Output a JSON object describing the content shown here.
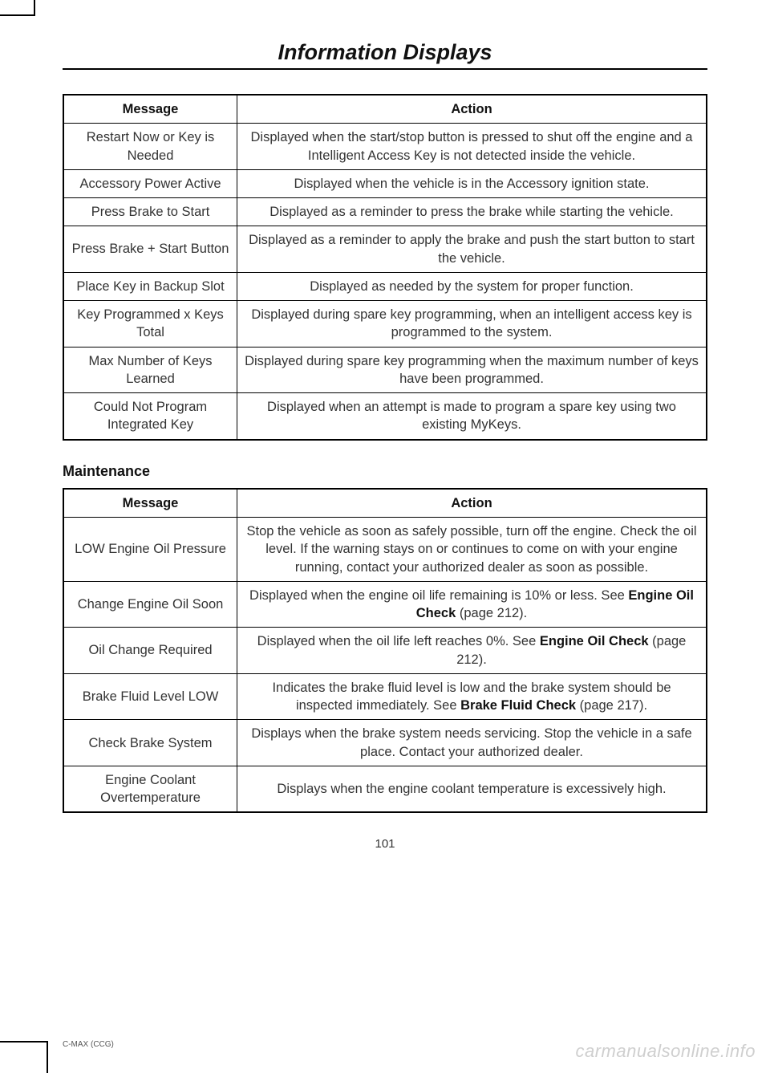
{
  "page_title": "Information Displays",
  "page_number": "101",
  "footer_text": "C-MAX (CCG)",
  "watermark": "carmanualsonline.info",
  "table1": {
    "headers": {
      "message": "Message",
      "action": "Action"
    },
    "rows": [
      {
        "message": "Restart Now or Key is Needed",
        "action": "Displayed when the start/stop button is pressed to shut off the engine and a Intelligent Access Key is not detected inside the vehicle."
      },
      {
        "message": "Accessory Power Active",
        "action": "Displayed when the vehicle is in the Accessory ignition state."
      },
      {
        "message": "Press Brake to Start",
        "action": "Displayed as a reminder to press the brake while starting the vehicle."
      },
      {
        "message": "Press Brake + Start Button",
        "action": "Displayed as a reminder to apply the brake and push the start button to start the vehicle."
      },
      {
        "message": "Place Key in Backup Slot",
        "action": "Displayed as needed by the system for proper function."
      },
      {
        "message": "Key Programmed x Keys Total",
        "action": "Displayed during spare key programming, when an intelligent access key is programmed to the system."
      },
      {
        "message": "Max Number of Keys Learned",
        "action": "Displayed during spare key programming when the maximum number of keys have been programmed."
      },
      {
        "message": "Could Not Program Integrated Key",
        "action": "Displayed when an attempt is made to program a spare key using two existing MyKeys."
      }
    ]
  },
  "table2": {
    "heading": "Maintenance",
    "headers": {
      "message": "Message",
      "action": "Action"
    },
    "rows": [
      {
        "message": "LOW Engine Oil Pressure",
        "action": "Stop the vehicle as soon as safely possible, turn off the engine. Check the oil level. If the warning stays on or continues to come on with your engine running, contact your authorized dealer as soon as possible."
      },
      {
        "message": "Change Engine Oil Soon",
        "action_parts": [
          "Displayed when the engine oil life remaining is 10% or less. See ",
          "Engine Oil Check",
          " (page 212)."
        ]
      },
      {
        "message": "Oil Change Required",
        "action_parts": [
          "Displayed when the oil life left reaches 0%. See ",
          "Engine Oil Check",
          " (page 212)."
        ]
      },
      {
        "message": "Brake Fluid Level LOW",
        "action_parts": [
          "Indicates the brake fluid level is low and the brake system should be inspected immediately. See ",
          "Brake Fluid Check",
          " (page 217)."
        ]
      },
      {
        "message": "Check Brake System",
        "action": "Displays when the brake system needs servicing. Stop the vehicle in a safe place. Contact your authorized dealer."
      },
      {
        "message": "Engine Coolant Overtemperature",
        "action": "Displays when the engine coolant temperature is excessively high."
      }
    ]
  }
}
